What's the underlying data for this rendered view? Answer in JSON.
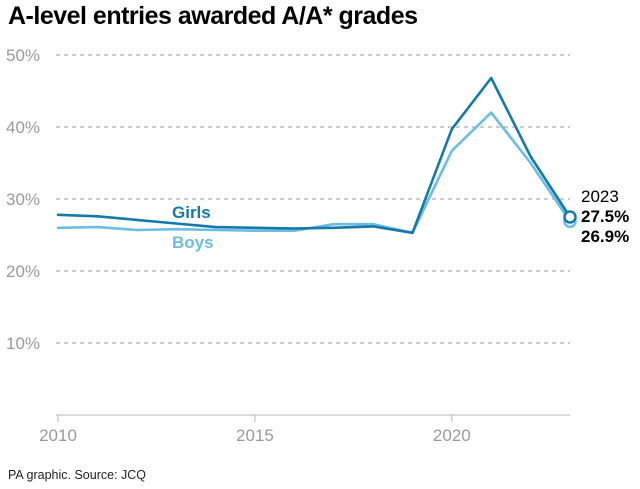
{
  "title": "A-level entries awarded A/A* grades",
  "source": "PA graphic. Source: JCQ",
  "colors": {
    "girls": "#1479a8",
    "boys": "#6bbde3",
    "grid": "#9a9a9a",
    "axis": "#b5b5b5"
  },
  "chart_data": {
    "type": "line",
    "title": "A-level entries awarded A/A* grades",
    "xlim": [
      2010,
      2023
    ],
    "ylim": [
      0,
      50
    ],
    "x_ticks": [
      2010,
      2015,
      2020
    ],
    "y_ticks": [
      {
        "value": 10,
        "label": "10%"
      },
      {
        "value": 20,
        "label": "20%"
      },
      {
        "value": 30,
        "label": "30%"
      },
      {
        "value": 40,
        "label": "40%"
      },
      {
        "value": 50,
        "label": "50%"
      }
    ],
    "x_labels": [
      "2010",
      "2015",
      "2020"
    ],
    "grid": "horizontal-dashed",
    "x": [
      2010,
      2011,
      2012,
      2013,
      2014,
      2015,
      2016,
      2017,
      2018,
      2019,
      2020,
      2021,
      2022,
      2023
    ],
    "series": [
      {
        "name": "Girls",
        "color_key": "girls",
        "values": [
          27.8,
          27.6,
          27.1,
          26.6,
          26.1,
          26.0,
          25.9,
          26.0,
          26.2,
          25.3,
          39.7,
          46.8,
          35.9,
          27.5
        ]
      },
      {
        "name": "Boys",
        "color_key": "boys",
        "values": [
          26.0,
          26.1,
          25.7,
          25.8,
          25.7,
          25.6,
          25.6,
          26.5,
          26.5,
          25.3,
          36.7,
          42.0,
          35.0,
          26.9
        ]
      }
    ],
    "end_annotation": {
      "year": "2023",
      "girls": "27.5%",
      "boys": "26.9%"
    }
  }
}
